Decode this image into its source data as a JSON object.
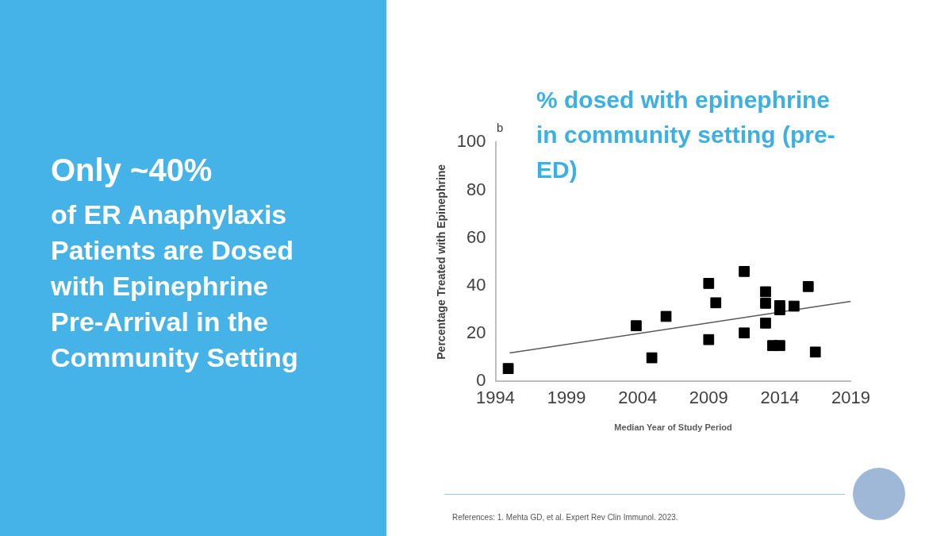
{
  "chart_data": {
    "type": "scatter",
    "title": "% dosed with epinephrine in community setting (pre-ED)",
    "xlabel": "Median Year of Study Period",
    "ylabel": "Percentage Treated with Epinephrine",
    "annotations": [
      "b",
      "Only ~40%",
      "of ER Anaphylaxis Patients are Dosed with Epinephrine Pre-Arrival in the Community Setting",
      "References: 1. Mehta GD, et al. Expert Rev Clin Immunol. 2023."
    ],
    "series": [
      {
        "color": "#000000",
        "x": [
          1994.9,
          2003.9,
          2005.0,
          2006.0,
          2009.0,
          2009.0,
          2009.5,
          2011.5,
          2011.5,
          2013.0,
          2013.0,
          2013.0,
          2013.5,
          2014.0,
          2014.0,
          2014.0,
          2015.0,
          2016.0,
          2016.5
        ],
        "values": [
          5.4,
          23.3,
          9.9,
          27.2,
          41.0,
          17.5,
          32.9,
          46.0,
          20.3,
          37.5,
          32.7,
          24.4,
          15.0,
          15.0,
          31.7,
          30.0,
          31.5,
          39.7,
          12.3
        ]
      },
      {
        "type": "line",
        "color": "#595959",
        "marker": "none",
        "x": [
          1995,
          2019
        ],
        "values": [
          11.9,
          33.5
        ]
      }
    ],
    "marker": "square",
    "xlim": [
      1994,
      2019
    ],
    "xticks": [
      1994,
      1999,
      2004,
      2009,
      2014,
      2019
    ],
    "ylim": [
      0,
      100
    ],
    "yticks": [
      0,
      20,
      40,
      60,
      80,
      100
    ],
    "grid": false,
    "legend": false
  }
}
